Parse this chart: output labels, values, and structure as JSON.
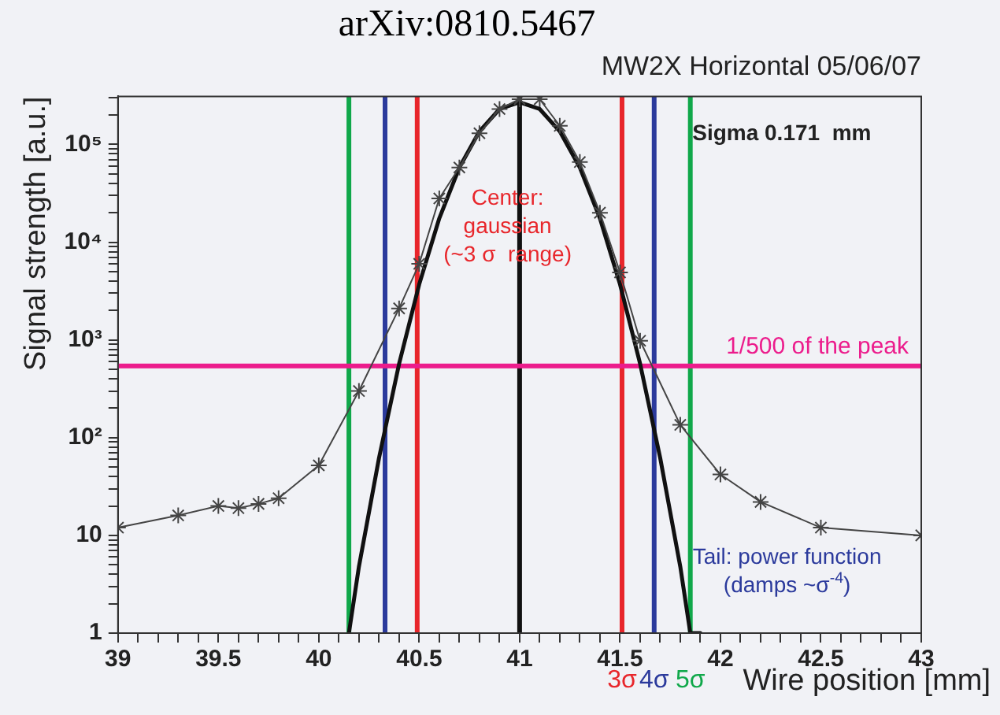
{
  "chart_data": {
    "type": "line",
    "title": "arXiv:0810.5467",
    "subtitle": "MW2X Horizontal 05/06/07",
    "xlabel": "Wire position [mm]",
    "ylabel": "Signal strength [a.u.]",
    "log": "y",
    "xlim": [
      39,
      43
    ],
    "ylim": [
      1,
      310000
    ],
    "xticks": [
      39,
      {
        "value": 39.1,
        "label": null
      },
      {
        "value": 39.2,
        "label": null
      },
      {
        "value": 39.3,
        "label": null
      },
      {
        "value": 39.4,
        "label": null
      },
      39.5,
      {
        "value": 39.6,
        "label": null
      },
      {
        "value": 39.7,
        "label": null
      },
      {
        "value": 39.8,
        "label": null
      },
      {
        "value": 39.9,
        "label": null
      },
      40,
      {
        "value": 40.1,
        "label": null
      },
      {
        "value": 40.2,
        "label": null
      },
      {
        "value": 40.3,
        "label": null
      },
      {
        "value": 40.4,
        "label": null
      },
      40.5,
      {
        "value": 40.6,
        "label": null
      },
      {
        "value": 40.7,
        "label": null
      },
      {
        "value": 40.8,
        "label": null
      },
      {
        "value": 40.9,
        "label": null
      },
      41,
      {
        "value": 41.1,
        "label": null
      },
      {
        "value": 41.2,
        "label": null
      },
      {
        "value": 41.3,
        "label": null
      },
      {
        "value": 41.4,
        "label": null
      },
      41.5,
      {
        "value": 41.6,
        "label": null
      },
      {
        "value": 41.7,
        "label": null
      },
      {
        "value": 41.8,
        "label": null
      },
      {
        "value": 41.9,
        "label": null
      },
      42,
      {
        "value": 42.1,
        "label": null
      },
      {
        "value": 42.2,
        "label": null
      },
      {
        "value": 42.3,
        "label": null
      },
      {
        "value": 42.4,
        "label": null
      },
      42.5,
      {
        "value": 42.6,
        "label": null
      },
      {
        "value": 42.7,
        "label": null
      },
      {
        "value": 42.8,
        "label": null
      },
      {
        "value": 42.9,
        "label": null
      },
      43
    ],
    "yticks": [
      1,
      {
        "value": 2,
        "label": null
      },
      {
        "value": 3,
        "label": null
      },
      {
        "value": 4,
        "label": null
      },
      {
        "value": 5,
        "label": null
      },
      {
        "value": 6,
        "label": null
      },
      {
        "value": 7,
        "label": null
      },
      {
        "value": 8,
        "label": null
      },
      {
        "value": 9,
        "label": null
      },
      10,
      {
        "value": 20,
        "label": null
      },
      {
        "value": 30,
        "label": null
      },
      {
        "value": 40,
        "label": null
      },
      {
        "value": 50,
        "label": null
      },
      {
        "value": 60,
        "label": null
      },
      {
        "value": 70,
        "label": null
      },
      {
        "value": 80,
        "label": null
      },
      {
        "value": 90,
        "label": null
      },
      {
        "value": 100,
        "label": "10²"
      },
      {
        "value": 200,
        "label": null
      },
      {
        "value": 300,
        "label": null
      },
      {
        "value": 400,
        "label": null
      },
      {
        "value": 500,
        "label": null
      },
      {
        "value": 600,
        "label": null
      },
      {
        "value": 700,
        "label": null
      },
      {
        "value": 800,
        "label": null
      },
      {
        "value": 900,
        "label": null
      },
      {
        "value": 1000,
        "label": "10³"
      },
      {
        "value": 2000,
        "label": null
      },
      {
        "value": 3000,
        "label": null
      },
      {
        "value": 4000,
        "label": null
      },
      {
        "value": 5000,
        "label": null
      },
      {
        "value": 6000,
        "label": null
      },
      {
        "value": 7000,
        "label": null
      },
      {
        "value": 8000,
        "label": null
      },
      {
        "value": 9000,
        "label": null
      },
      {
        "value": 10000,
        "label": "10⁴"
      },
      {
        "value": 20000,
        "label": null
      },
      {
        "value": 30000,
        "label": null
      },
      {
        "value": 40000,
        "label": null
      },
      {
        "value": 50000,
        "label": null
      },
      {
        "value": 60000,
        "label": null
      },
      {
        "value": 70000,
        "label": null
      },
      {
        "value": 80000,
        "label": null
      },
      {
        "value": 90000,
        "label": null
      },
      {
        "value": 100000,
        "label": "10⁵"
      },
      {
        "value": 200000,
        "label": null
      },
      {
        "value": 300000,
        "label": null
      }
    ],
    "grid": false,
    "legend": false,
    "series": [
      {
        "color": "#444444",
        "marker": "cross",
        "line_style": "solid",
        "x": [
          39,
          39.3,
          39.5,
          39.6,
          39.7,
          39.8,
          40,
          40.2,
          40.4,
          40.5,
          40.6,
          40.7,
          40.8,
          40.9,
          41,
          41.1,
          41.2,
          41.3,
          41.4,
          41.5,
          41.6,
          41.8,
          42,
          42.2,
          42.5,
          43
        ],
        "values": [
          12,
          16,
          20,
          19,
          21,
          24,
          52,
          300,
          2100,
          6000,
          28000,
          58000,
          130000,
          230000,
          290000,
          290000,
          155000,
          66000,
          20000,
          4900,
          980,
          135,
          42,
          22,
          12,
          10
        ]
      },
      {
        "color": "#111111",
        "marker": "none",
        "line_style": "solid",
        "x": [
          40.15,
          40.2,
          40.3,
          40.4,
          40.5,
          40.6,
          40.7,
          40.8,
          40.9,
          41,
          41.1,
          41.2,
          41.3,
          41.4,
          41.5,
          41.6,
          41.7,
          41.8,
          41.85,
          41.9
        ],
        "values": [
          1,
          4.8,
          62,
          570,
          3700,
          17500,
          58000,
          136000,
          230000,
          270000,
          230000,
          136000,
          58000,
          17500,
          3700,
          570,
          62,
          4.8,
          1,
          1
        ]
      }
    ],
    "ref_lines": [
      {
        "axis": "x",
        "value": 40.15,
        "color": "#10a84a",
        "label": null
      },
      {
        "axis": "x",
        "value": 40.33,
        "color": "#2b3a9c",
        "label": null
      },
      {
        "axis": "x",
        "value": 40.49,
        "color": "#e8262b",
        "label": null
      },
      {
        "axis": "x",
        "value": 41,
        "color": "#111111",
        "label": null
      },
      {
        "axis": "x",
        "value": 41.51,
        "color": "#e8262b",
        "label": "3σ"
      },
      {
        "axis": "x",
        "value": 41.67,
        "color": "#2b3a9c",
        "label": "4σ"
      },
      {
        "axis": "x",
        "value": 41.85,
        "color": "#10a84a",
        "label": "5σ"
      },
      {
        "axis": "y",
        "value": 540,
        "color": "#ec1c8c",
        "label": "1/500 of the peak"
      }
    ],
    "annotations": [
      "Sigma 0.171  mm",
      "Center:\ngaussian\n(~3 σ  range)",
      "Tail: power function\n(damps ~σ$^{-4}$)"
    ]
  }
}
